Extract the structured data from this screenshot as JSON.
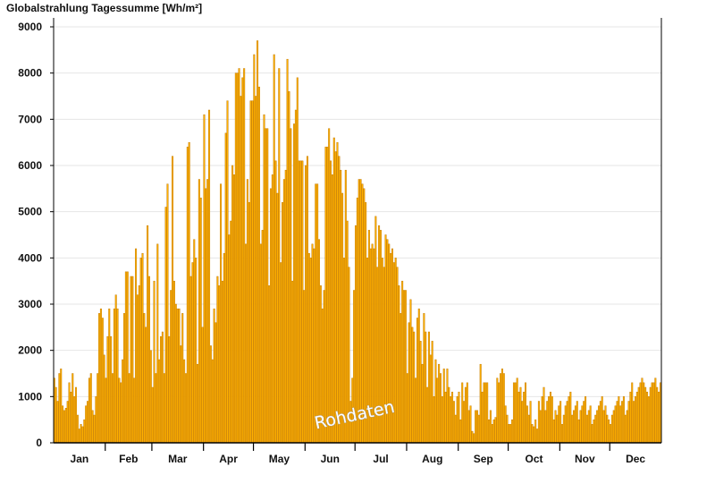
{
  "colors": {
    "bar_fill": "#FFB000",
    "bar_edge": "#C07800",
    "axis": "#000000",
    "grid": "#E6E6E6",
    "text": "#111111",
    "watermark_fill": "#FFFFFF"
  },
  "watermark": "Rohdaten",
  "chart_data": {
    "type": "bar",
    "title": "Globalstrahlung Tagessumme [Wh/m²]",
    "xlabel": "",
    "ylabel": "",
    "ylim": [
      0,
      9000
    ],
    "y_ticks": [
      "0",
      "1000",
      "2000",
      "3000",
      "4000",
      "5000",
      "6000",
      "7000",
      "8000",
      "9000"
    ],
    "grid": true,
    "legend": "none",
    "month_labels": [
      "Jan",
      "Feb",
      "Mar",
      "Apr",
      "May",
      "Jun",
      "Jul",
      "Aug",
      "Sep",
      "Oct",
      "Nov",
      "Dec"
    ],
    "x": "day of year (1–365)",
    "values": [
      1400,
      1200,
      900,
      1500,
      1600,
      800,
      700,
      750,
      900,
      1300,
      1100,
      1500,
      1000,
      1200,
      600,
      300,
      400,
      350,
      500,
      800,
      900,
      1400,
      1500,
      700,
      600,
      1000,
      1500,
      2800,
      2900,
      2700,
      1900,
      1400,
      2300,
      2900,
      2300,
      1500,
      2900,
      3200,
      2900,
      1400,
      1300,
      1800,
      2800,
      3700,
      3700,
      1500,
      3600,
      3600,
      1400,
      4200,
      3200,
      3400,
      4000,
      4100,
      2800,
      2500,
      4700,
      3600,
      2000,
      1200,
      3500,
      1500,
      4300,
      1800,
      2300,
      2400,
      1500,
      5100,
      5600,
      2300,
      3300,
      6200,
      3500,
      3000,
      2900,
      2900,
      2100,
      2800,
      1800,
      1500,
      6400,
      6500,
      3600,
      3900,
      4400,
      4000,
      1700,
      5700,
      5300,
      2500,
      7100,
      5500,
      5700,
      7200,
      2100,
      1800,
      2900,
      2600,
      3600,
      3400,
      5600,
      3500,
      4100,
      6700,
      7400,
      4500,
      4800,
      6000,
      5800,
      8000,
      8000,
      8100,
      7500,
      7900,
      8100,
      4300,
      5700,
      5200,
      7400,
      7400,
      8400,
      7500,
      8700,
      7700,
      4300,
      4600,
      7100,
      6800,
      6800,
      3400,
      5500,
      5800,
      8400,
      6100,
      5400,
      8100,
      3900,
      5200,
      5700,
      5900,
      8300,
      7600,
      6800,
      3500,
      6900,
      7200,
      7900,
      6100,
      6100,
      6100,
      3300,
      6000,
      6200,
      4100,
      4000,
      4300,
      4200,
      5600,
      5600,
      4400,
      3400,
      2900,
      3300,
      6400,
      6400,
      6800,
      6100,
      5800,
      6600,
      6300,
      6500,
      6200,
      5900,
      5400,
      4000,
      5900,
      4800,
      3800,
      900,
      1400,
      3300,
      4700,
      5300,
      5700,
      5700,
      5600,
      5500,
      5200,
      4000,
      4600,
      4200,
      4300,
      4200,
      4900,
      3800,
      4700,
      4600,
      4000,
      3800,
      4500,
      4400,
      4300,
      4100,
      4200,
      3900,
      4000,
      3800,
      3400,
      2800,
      3500,
      3300,
      3300,
      1500,
      2600,
      3100,
      2500,
      2400,
      1400,
      2700,
      2900,
      2200,
      1700,
      2800,
      2400,
      1200,
      2400,
      1900,
      2200,
      1000,
      1800,
      1400,
      1700,
      1500,
      1000,
      1600,
      1100,
      1600,
      1200,
      1000,
      1100,
      900,
      600,
      1000,
      1100,
      500,
      1300,
      900,
      1200,
      1300,
      700,
      800,
      250,
      200,
      700,
      700,
      600,
      1700,
      1100,
      1300,
      1300,
      1300,
      500,
      700,
      400,
      500,
      550,
      1400,
      1300,
      1500,
      1600,
      1500,
      800,
      600,
      400,
      400,
      500,
      1300,
      1300,
      1400,
      1100,
      1200,
      900,
      1100,
      1300,
      800,
      600,
      900,
      400,
      350,
      500,
      300,
      900,
      700,
      1000,
      1200,
      700,
      900,
      1000,
      1100,
      1000,
      500,
      700,
      600,
      800,
      900,
      400,
      600,
      800,
      900,
      1000,
      1100,
      600,
      700,
      800,
      900,
      500,
      700,
      800,
      900,
      1000,
      600,
      700,
      800,
      400,
      500,
      600,
      700,
      800,
      900,
      1000,
      700,
      800,
      600,
      500,
      400,
      600,
      700,
      800,
      900,
      1000,
      800,
      900,
      1000,
      600,
      700,
      900,
      1100,
      1300,
      900,
      1000,
      1100,
      1200,
      1300,
      1400,
      1300,
      1200,
      1100,
      1000,
      1200,
      1300,
      1300,
      1400,
      1200,
      1100,
      1300
    ]
  }
}
